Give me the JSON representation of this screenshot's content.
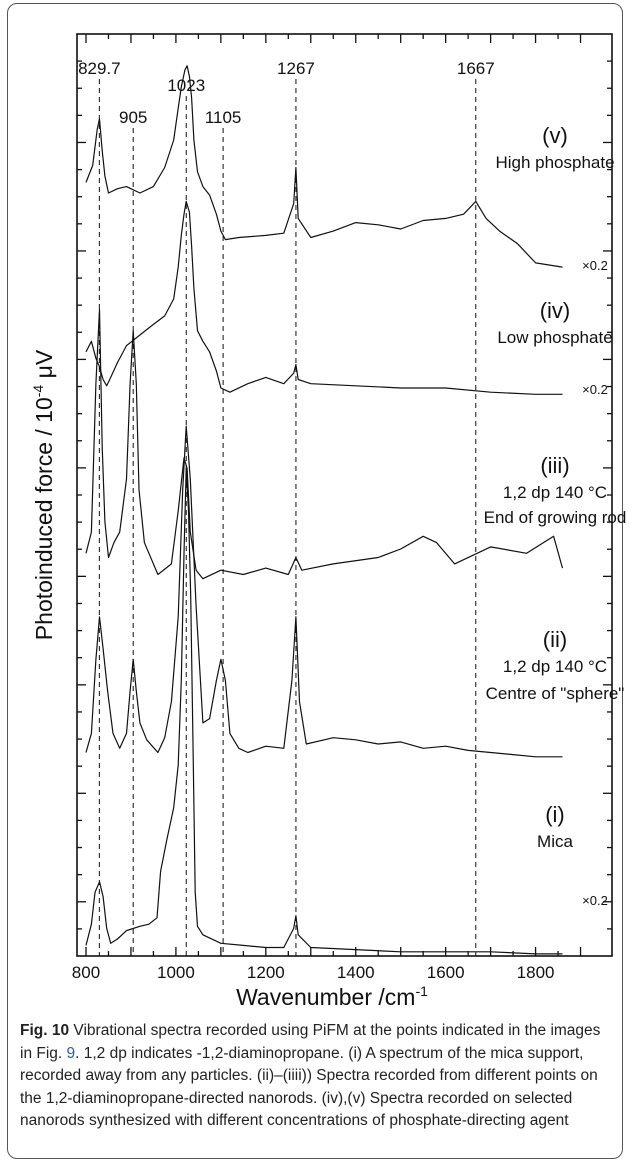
{
  "chart_data": {
    "type": "line",
    "title": "",
    "xlabel": "Wavenumber /cm",
    "xlabel_sup": "-1",
    "ylabel": "Photoinduced force / 10",
    "ylabel_sup": "-4",
    "ylabel_unit": " μV",
    "xlim": [
      780,
      1970
    ],
    "x_ticks": [
      800,
      1000,
      1200,
      1400,
      1600,
      1800
    ],
    "peak_markers": [
      {
        "x": 829.7,
        "label": "829.7",
        "row": 0
      },
      {
        "x": 905,
        "label": "905",
        "row": 2
      },
      {
        "x": 1023,
        "label": "1023",
        "row": 1
      },
      {
        "x": 1105,
        "label": "1105",
        "row": 2
      },
      {
        "x": 1267,
        "label": "1267",
        "row": 0
      },
      {
        "x": 1667,
        "label": "1667",
        "row": 0
      }
    ],
    "series": [
      {
        "id": "i",
        "label": "(i)",
        "description": "Mica",
        "scale": "×0.2",
        "baseline": 0.4,
        "x": [
          800,
          812,
          820,
          830,
          838,
          846,
          855,
          870,
          890,
          920,
          940,
          958,
          966,
          980,
          995,
          1005,
          1012,
          1018,
          1023,
          1028,
          1033,
          1038,
          1043,
          1048,
          1060,
          1100,
          1150,
          1200,
          1240,
          1262,
          1267,
          1272,
          1300,
          1400,
          1500,
          1600,
          1700,
          1800,
          1860
        ],
        "y": [
          0.5,
          1.5,
          3.0,
          3.5,
          2.8,
          1.3,
          0.6,
          0.8,
          1.2,
          1.4,
          1.5,
          1.8,
          4.0,
          5.5,
          7.0,
          9.0,
          13.0,
          19.0,
          23.0,
          21.0,
          17.0,
          10.0,
          3.0,
          1.4,
          1.0,
          0.6,
          0.5,
          0.4,
          0.4,
          1.3,
          1.9,
          1.0,
          0.4,
          0.3,
          0.2,
          0.2,
          0.2,
          0.1,
          0.1
        ]
      },
      {
        "id": "ii",
        "label": "(ii)",
        "description": "1,2 dp 140 °C",
        "note": "Centre of \"sphere\"",
        "scale": "",
        "baseline": 8.9,
        "x": [
          800,
          812,
          822,
          830,
          838,
          848,
          860,
          875,
          890,
          898,
          905,
          912,
          920,
          935,
          960,
          975,
          990,
          1005,
          1015,
          1023,
          1032,
          1045,
          1060,
          1075,
          1090,
          1100,
          1110,
          1120,
          1140,
          1160,
          1200,
          1240,
          1258,
          1267,
          1275,
          1290,
          1350,
          1400,
          1450,
          1500,
          1550,
          1600,
          1650,
          1700,
          1750,
          1800,
          1860
        ],
        "y": [
          9.6,
          10.5,
          14.0,
          16.0,
          14.5,
          12.5,
          10.5,
          9.8,
          10.5,
          12.5,
          14.0,
          12.5,
          11.0,
          10.2,
          9.6,
          10.3,
          12.0,
          16.0,
          22.0,
          25.0,
          22.5,
          16.5,
          11.0,
          11.2,
          13.0,
          14.0,
          13.0,
          10.5,
          9.8,
          9.6,
          9.9,
          9.8,
          13.0,
          16.0,
          12.0,
          10.0,
          10.3,
          10.2,
          10.0,
          10.1,
          9.8,
          9.9,
          9.7,
          9.6,
          9.5,
          9.4,
          9.4
        ]
      },
      {
        "id": "iii",
        "label": "(iii)",
        "description": "1,2 dp 140 °C",
        "note": "End of growing rod",
        "scale": "",
        "baseline": 17.3,
        "x": [
          800,
          812,
          822,
          830,
          836,
          842,
          850,
          862,
          875,
          890,
          898,
          905,
          912,
          918,
          930,
          960,
          990,
          1005,
          1018,
          1025,
          1032,
          1045,
          1060,
          1100,
          1150,
          1200,
          1250,
          1267,
          1280,
          1350,
          1450,
          1500,
          1550,
          1580,
          1620,
          1700,
          1780,
          1840,
          1860
        ],
        "y": [
          19.0,
          20.0,
          27.0,
          30.5,
          24.0,
          20.5,
          18.8,
          19.5,
          20.0,
          22.5,
          27.0,
          29.5,
          27.0,
          22.0,
          19.5,
          18.0,
          18.5,
          21.0,
          23.5,
          23.0,
          20.0,
          18.2,
          17.8,
          18.2,
          18.0,
          18.3,
          18.0,
          18.8,
          18.2,
          18.5,
          18.8,
          19.2,
          19.8,
          19.5,
          18.5,
          19.3,
          19.0,
          19.8,
          18.3
        ]
      },
      {
        "id": "iv",
        "label": "(iv)",
        "description": "Low phosphate",
        "scale": "×0.2",
        "baseline": 26.5,
        "x": [
          800,
          812,
          822,
          830,
          838,
          846,
          855,
          870,
          890,
          920,
          950,
          975,
          995,
          1005,
          1012,
          1018,
          1023,
          1030,
          1035,
          1040,
          1048,
          1060,
          1075,
          1090,
          1100,
          1120,
          1160,
          1200,
          1240,
          1262,
          1267,
          1272,
          1300,
          1400,
          1500,
          1600,
          1700,
          1800,
          1860
        ],
        "y": [
          28.5,
          29.0,
          28.2,
          27.8,
          27.2,
          26.9,
          27.3,
          28.0,
          28.8,
          29.3,
          29.8,
          30.2,
          31.0,
          32.5,
          34.0,
          35.0,
          35.6,
          35.1,
          33.5,
          31.5,
          29.5,
          29.0,
          28.5,
          27.6,
          26.8,
          26.6,
          27.0,
          27.3,
          27.0,
          27.5,
          27.9,
          27.2,
          27.0,
          26.9,
          26.8,
          26.8,
          26.6,
          26.5,
          26.5
        ]
      },
      {
        "id": "v",
        "label": "(v)",
        "description": "High phosphate",
        "scale": "×0.2",
        "baseline": 31.4,
        "x": [
          800,
          815,
          825,
          830,
          836,
          842,
          850,
          870,
          890,
          920,
          950,
          975,
          995,
          1005,
          1012,
          1020,
          1025,
          1030,
          1035,
          1040,
          1048,
          1060,
          1075,
          1090,
          1100,
          1110,
          1140,
          1200,
          1240,
          1262,
          1267,
          1272,
          1300,
          1350,
          1400,
          1450,
          1500,
          1550,
          1600,
          1640,
          1667,
          1690,
          1720,
          1760,
          1800,
          1860
        ],
        "y": [
          36.5,
          37.3,
          39.0,
          39.5,
          38.0,
          36.8,
          36.0,
          36.2,
          36.3,
          36.0,
          36.3,
          37.2,
          38.5,
          40.0,
          41.0,
          41.8,
          42.0,
          41.5,
          40.5,
          38.5,
          37.0,
          36.3,
          35.9,
          35.0,
          34.2,
          33.8,
          33.9,
          34.0,
          34.1,
          35.5,
          37.2,
          34.8,
          33.9,
          34.2,
          34.6,
          34.5,
          34.3,
          34.7,
          34.8,
          35.0,
          35.6,
          34.8,
          34.2,
          33.6,
          32.7,
          32.5
        ]
      }
    ]
  },
  "caption": {
    "label": "Fig. 10",
    "text_a": " Vibrational spectra recorded using PiFM at the points indicated in the images in Fig. ",
    "figref": "9",
    "text_b": ". 1,2 dp indicates -1,2-diaminopropane. (i) A spectrum of the mica support, recorded away from any particles. (ii)–(iiii)) Spectra recorded from different points on the 1,2-diaminopropane-directed nanorods. (iv),(v) Spectra recorded on selected nanorods synthesized with different concentrations of phosphate-directing agent"
  }
}
